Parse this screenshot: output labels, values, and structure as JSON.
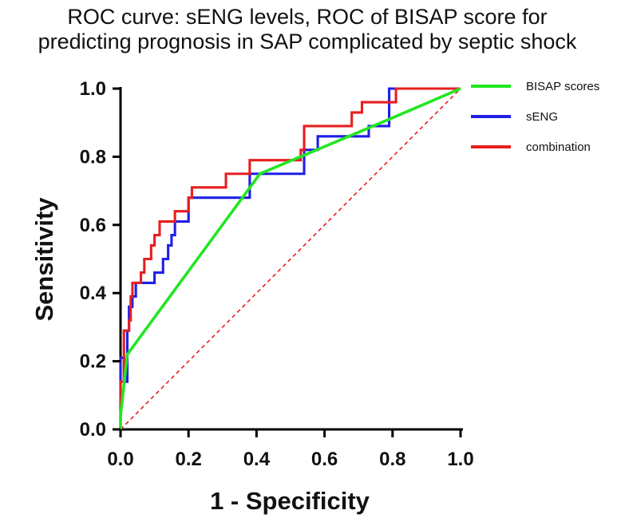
{
  "chart_data": {
    "type": "line",
    "title_lines": [
      "ROC curve: sENG levels, ROC of BISAP score for",
      "predicting prognosis in SAP complicated by septic shock"
    ],
    "xlabel": "1 - Specificity",
    "ylabel": "Sensitivity",
    "xlim": [
      0,
      1
    ],
    "ylim": [
      0,
      1
    ],
    "x_ticks": [
      "0.0",
      "0.2",
      "0.4",
      "0.6",
      "0.8",
      "1.0"
    ],
    "y_ticks": [
      "0.0",
      "0.2",
      "0.4",
      "0.6",
      "0.8",
      "1.0"
    ],
    "grid": false,
    "legend_position": "top-right",
    "series": [
      {
        "name": "BISAP scores",
        "color": "#22e622",
        "style": "solid",
        "x": [
          0.0,
          0.0,
          0.02,
          0.41,
          0.79,
          1.0
        ],
        "y": [
          0.0,
          0.04,
          0.22,
          0.75,
          0.91,
          1.0
        ]
      },
      {
        "name": "sENG",
        "color": "#1f1fe6",
        "style": "step",
        "x": [
          0.0,
          0.0,
          0.01,
          0.01,
          0.02,
          0.02,
          0.025,
          0.025,
          0.035,
          0.035,
          0.045,
          0.045,
          0.05,
          0.05,
          0.1,
          0.1,
          0.125,
          0.125,
          0.14,
          0.14,
          0.15,
          0.15,
          0.16,
          0.16,
          0.2,
          0.2,
          0.38,
          0.38,
          0.54,
          0.54,
          0.58,
          0.58,
          0.7,
          0.7,
          0.73,
          0.73,
          0.79,
          0.79,
          0.81,
          0.81,
          1.0
        ],
        "y": [
          0.0,
          0.21,
          0.21,
          0.14,
          0.14,
          0.29,
          0.29,
          0.36,
          0.36,
          0.39,
          0.39,
          0.43,
          0.43,
          0.43,
          0.43,
          0.46,
          0.46,
          0.5,
          0.5,
          0.54,
          0.54,
          0.57,
          0.57,
          0.61,
          0.61,
          0.68,
          0.68,
          0.75,
          0.75,
          0.82,
          0.82,
          0.86,
          0.86,
          0.86,
          0.86,
          0.89,
          0.89,
          1.0,
          1.0,
          1.0,
          1.0
        ]
      },
      {
        "name": "combination",
        "color": "#e61f1f",
        "style": "step",
        "x": [
          0.0,
          0.0,
          0.01,
          0.01,
          0.025,
          0.025,
          0.03,
          0.03,
          0.035,
          0.035,
          0.045,
          0.045,
          0.05,
          0.05,
          0.06,
          0.06,
          0.07,
          0.07,
          0.09,
          0.09,
          0.1,
          0.1,
          0.115,
          0.115,
          0.15,
          0.15,
          0.16,
          0.16,
          0.2,
          0.2,
          0.21,
          0.21,
          0.31,
          0.31,
          0.38,
          0.38,
          0.53,
          0.53,
          0.54,
          0.54,
          0.68,
          0.68,
          0.71,
          0.71,
          0.75,
          0.75,
          0.79,
          0.79,
          0.81,
          0.81,
          1.0
        ],
        "y": [
          0.0,
          0.14,
          0.14,
          0.29,
          0.29,
          0.32,
          0.32,
          0.39,
          0.39,
          0.43,
          0.43,
          0.43,
          0.43,
          0.43,
          0.43,
          0.46,
          0.46,
          0.5,
          0.5,
          0.54,
          0.54,
          0.57,
          0.57,
          0.61,
          0.61,
          0.61,
          0.61,
          0.64,
          0.64,
          0.68,
          0.68,
          0.71,
          0.71,
          0.75,
          0.75,
          0.79,
          0.79,
          0.82,
          0.82,
          0.89,
          0.89,
          0.93,
          0.93,
          0.96,
          0.96,
          0.96,
          0.96,
          0.96,
          0.96,
          1.0,
          1.0
        ]
      },
      {
        "name": "reference",
        "color": "#e61f1f",
        "style": "dashed",
        "x": [
          0.0,
          1.0
        ],
        "y": [
          0.0,
          1.0
        ]
      }
    ],
    "legend_entries": [
      {
        "name": "BISAP scores",
        "color": "#22e622"
      },
      {
        "name": "sENG",
        "color": "#1f1fe6"
      },
      {
        "name": "combination",
        "color": "#e61f1f"
      }
    ],
    "colors": {
      "axis": "#000000",
      "text": "#111111"
    }
  }
}
